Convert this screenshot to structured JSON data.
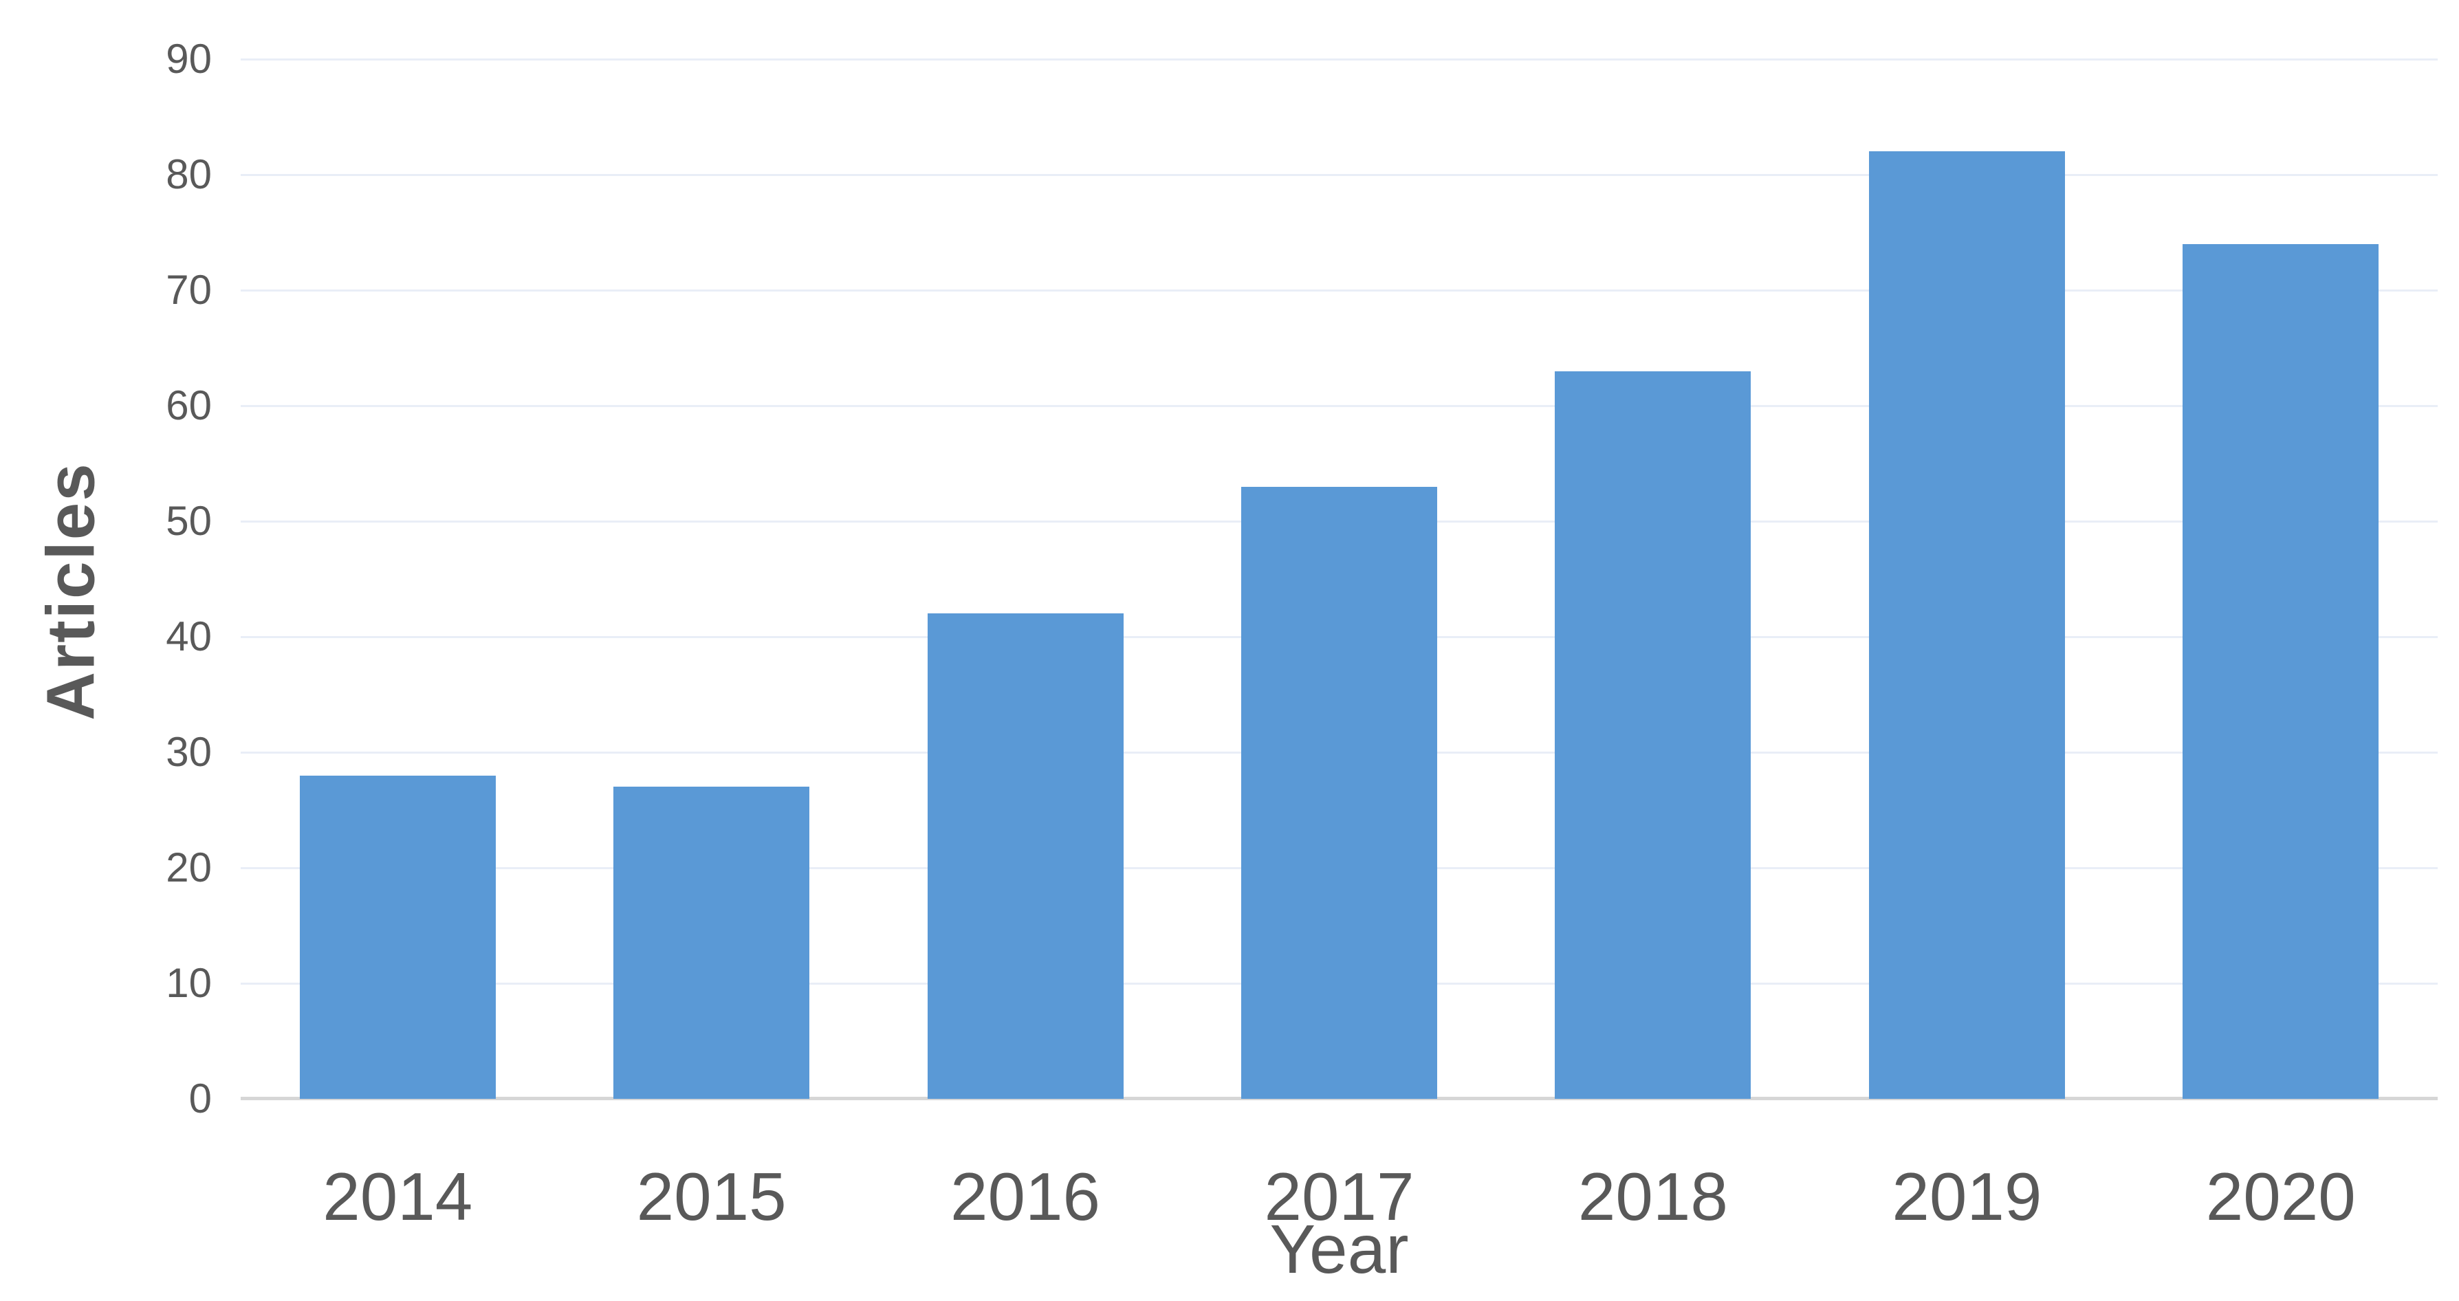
{
  "chart_data": {
    "type": "bar",
    "title": "",
    "xlabel": "Year",
    "ylabel": "Articles",
    "categories": [
      "2014",
      "2015",
      "2016",
      "2017",
      "2018",
      "2019",
      "2020"
    ],
    "values": [
      28,
      27,
      42,
      53,
      63,
      82,
      74
    ],
    "ylim": [
      0,
      90
    ],
    "ytick_step": 10,
    "yticks": [
      0,
      10,
      20,
      30,
      40,
      50,
      60,
      70,
      80,
      90
    ],
    "grid": "horizontal",
    "legend_position": "none",
    "colors": {
      "bar": "#5A99D6",
      "gridline": "#E9EEF7",
      "axis_line": "#D6D6D6",
      "text": "#595959",
      "background": "#FFFFFF"
    }
  }
}
